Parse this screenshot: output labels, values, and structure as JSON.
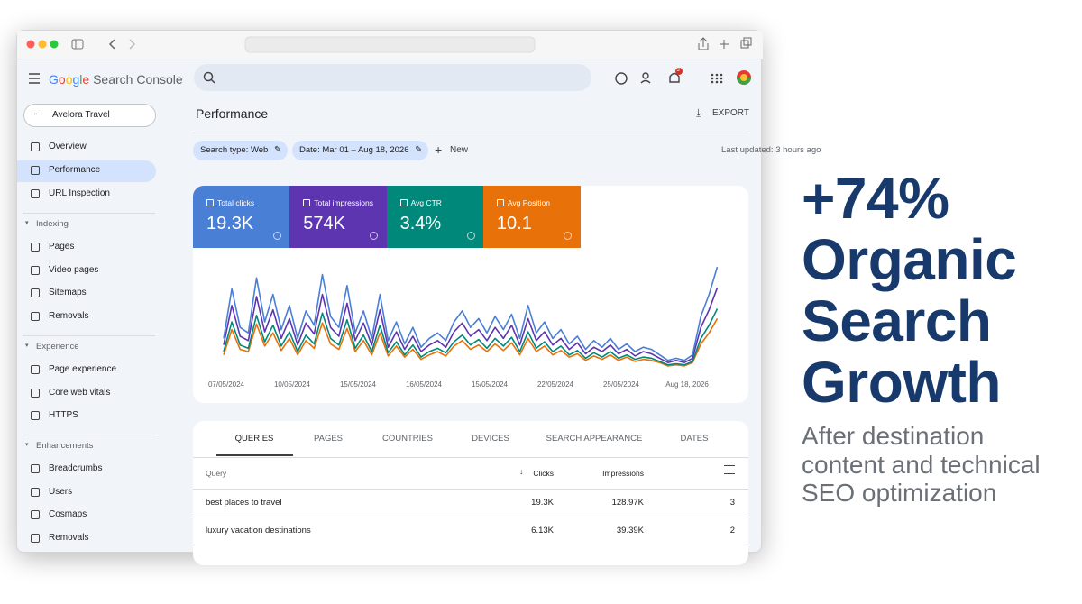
{
  "header": {
    "brand": "Google",
    "product": "Search Console",
    "notifications": "3"
  },
  "sidebar": {
    "property": "Avelora Travel",
    "main": [
      "Overview",
      "Performance",
      "URL Inspection"
    ],
    "sections": [
      {
        "title": "Indexing",
        "items": [
          "Pages",
          "Video pages",
          "Sitemaps",
          "Removals"
        ]
      },
      {
        "title": "Experience",
        "items": [
          "Page experience",
          "Core web vitals",
          "HTTPS"
        ]
      },
      {
        "title": "Enhancements",
        "items": [
          "Breadcrumbs",
          "Users",
          "Cosmaps",
          "Removals"
        ]
      }
    ]
  },
  "page": {
    "title": "Performance",
    "export": "EXPORT",
    "filters": [
      "Search type: Web",
      "Date: Mar 01 – Aug 18, 2026"
    ],
    "new": "New",
    "last_updated": "Last updated: 3 hours ago"
  },
  "metrics": [
    "19.3K",
    "574K",
    "3.4%",
    "10.1"
  ],
  "chart_data": {
    "type": "line",
    "categories": [
      "07/05/2024",
      null,
      null,
      null,
      null,
      null,
      null,
      null,
      "10/05/2024",
      null,
      null,
      null,
      null,
      null,
      null,
      null,
      "15/05/2024",
      null,
      null,
      null,
      null,
      null,
      null,
      null,
      "16/05/2024",
      null,
      null,
      null,
      null,
      null,
      null,
      null,
      "15/05/2024",
      null,
      null,
      null,
      null,
      null,
      null,
      null,
      "22/05/2024",
      null,
      null,
      null,
      null,
      null,
      null,
      null,
      "25/05/2024",
      null,
      null,
      null,
      null,
      null,
      null,
      null,
      "Aug 18, 2026",
      null,
      null,
      null,
      null
    ],
    "ylim": [
      0,
      100
    ],
    "series": [
      {
        "name": "Total clicks",
        "color": "#4a7fd6",
        "values": [
          30,
          75,
          40,
          35,
          85,
          45,
          70,
          38,
          60,
          30,
          55,
          42,
          88,
          50,
          40,
          78,
          35,
          55,
          30,
          70,
          28,
          45,
          25,
          40,
          22,
          30,
          35,
          28,
          45,
          55,
          40,
          48,
          35,
          50,
          38,
          52,
          30,
          60,
          35,
          45,
          30,
          38,
          25,
          32,
          20,
          28,
          22,
          30,
          20,
          25,
          18,
          22,
          20,
          15,
          10,
          12,
          10,
          15,
          50,
          70,
          95
        ]
      },
      {
        "name": "Total impressions",
        "color": "#5e35b1",
        "values": [
          24,
          60,
          32,
          28,
          68,
          36,
          56,
          30,
          48,
          24,
          44,
          34,
          70,
          40,
          32,
          62,
          28,
          44,
          24,
          56,
          22,
          36,
          20,
          32,
          18,
          24,
          28,
          22,
          36,
          44,
          32,
          38,
          28,
          40,
          30,
          42,
          24,
          48,
          28,
          36,
          24,
          30,
          20,
          26,
          16,
          22,
          18,
          24,
          16,
          20,
          14,
          18,
          16,
          12,
          8,
          10,
          8,
          12,
          40,
          56,
          76
        ]
      },
      {
        "name": "Avg CTR",
        "color": "#00897b",
        "values": [
          18,
          45,
          24,
          21,
          51,
          27,
          42,
          23,
          36,
          18,
          33,
          25,
          53,
          30,
          24,
          47,
          21,
          33,
          18,
          42,
          17,
          27,
          15,
          24,
          13,
          18,
          21,
          17,
          27,
          33,
          24,
          29,
          21,
          30,
          23,
          31,
          18,
          36,
          21,
          27,
          18,
          23,
          15,
          19,
          12,
          17,
          13,
          18,
          12,
          15,
          11,
          13,
          12,
          9,
          6,
          7,
          6,
          9,
          30,
          42,
          57
        ]
      },
      {
        "name": "Avg Position",
        "color": "#e8710a",
        "values": [
          15,
          38,
          20,
          18,
          43,
          23,
          35,
          19,
          30,
          15,
          28,
          21,
          44,
          25,
          20,
          39,
          18,
          28,
          15,
          35,
          14,
          23,
          13,
          20,
          11,
          15,
          18,
          14,
          23,
          28,
          20,
          24,
          18,
          25,
          19,
          26,
          15,
          30,
          18,
          23,
          15,
          19,
          13,
          16,
          10,
          14,
          11,
          15,
          10,
          13,
          9,
          11,
          10,
          8,
          5,
          6,
          5,
          8,
          25,
          35,
          48
        ]
      }
    ]
  },
  "table": {
    "tabs": [
      "QUERIES",
      "PAGES",
      "COUNTRIES",
      "DEVICES",
      "SEARCH APPEARANCE",
      "DATES"
    ],
    "columns": [
      "Query",
      "Clicks",
      "Impressions"
    ],
    "rows": [
      [
        "best places to travel",
        "19.3K",
        "128.97K",
        "3"
      ],
      [
        "luxury vacation destinations",
        "6.13K",
        "39.39K",
        "2"
      ]
    ]
  },
  "headline": {
    "lines": [
      "+74%",
      "Organic",
      "Search",
      "Growth"
    ],
    "subtitle": [
      "After destination",
      "content and technical",
      "SEO optimization"
    ]
  }
}
